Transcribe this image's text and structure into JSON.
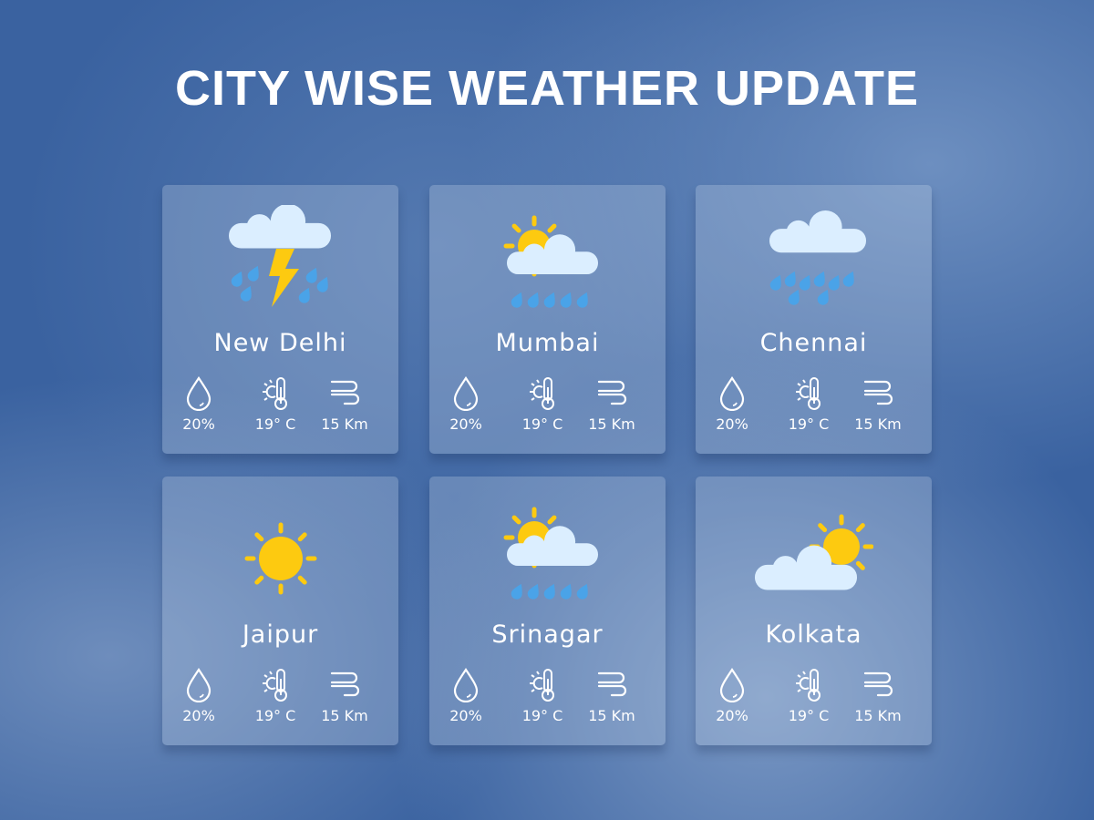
{
  "title": "CITY WISE WEATHER UPDATE",
  "colors": {
    "cloud": "#dbeeff",
    "sun": "#fdca10",
    "rain": "#4aa3e8",
    "bolt": "#fdca10"
  },
  "cities": [
    {
      "name": "New Delhi",
      "icon": "thunderstorm",
      "humidity": "20%",
      "temperature": "19° C",
      "wind": "15 Km"
    },
    {
      "name": "Mumbai",
      "icon": "partly-cloudy-rain",
      "humidity": "20%",
      "temperature": "19° C",
      "wind": "15 Km"
    },
    {
      "name": "Chennai",
      "icon": "rain",
      "humidity": "20%",
      "temperature": "19° C",
      "wind": "15 Km"
    },
    {
      "name": "Jaipur",
      "icon": "sunny",
      "humidity": "20%",
      "temperature": "19° C",
      "wind": "15 Km"
    },
    {
      "name": "Srinagar",
      "icon": "partly-cloudy-rain",
      "humidity": "20%",
      "temperature": "19° C",
      "wind": "15 Km"
    },
    {
      "name": "Kolkata",
      "icon": "partly-cloudy",
      "humidity": "20%",
      "temperature": "19° C",
      "wind": "15 Km"
    }
  ]
}
